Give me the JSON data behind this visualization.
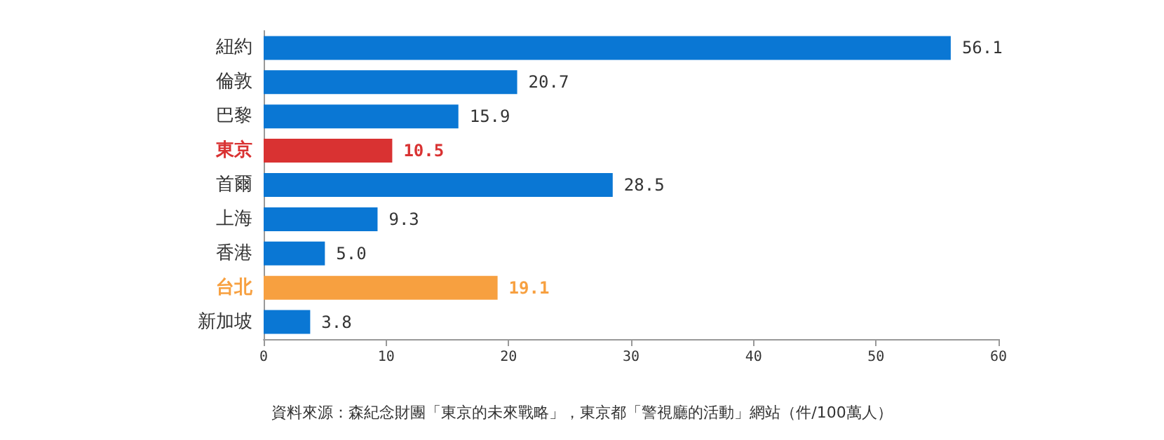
{
  "chart_data": {
    "type": "bar",
    "orientation": "horizontal",
    "categories": [
      "紐約",
      "倫敦",
      "巴黎",
      "東京",
      "首爾",
      "上海",
      "香港",
      "台北",
      "新加坡"
    ],
    "values": [
      56.1,
      20.7,
      15.9,
      10.5,
      28.5,
      9.3,
      5.0,
      19.1,
      3.8
    ],
    "colors": [
      "#0a77d4",
      "#0a77d4",
      "#0a77d4",
      "#d93232",
      "#0a77d4",
      "#0a77d4",
      "#0a77d4",
      "#f7a040",
      "#0a77d4"
    ],
    "value_labels": [
      "56.1",
      "20.7",
      "15.9",
      "10.5",
      "28.5",
      "9.3",
      "5.0",
      "19.1",
      "3.8"
    ],
    "xlim": [
      0,
      60
    ],
    "xticks": [
      0,
      10,
      20,
      30,
      40,
      50,
      60
    ],
    "grid": false,
    "annotations": [
      "資料來源：森紀念財團「東京的未來戰略」，東京都「警視廳的活動」網站（件/100萬人）"
    ]
  }
}
